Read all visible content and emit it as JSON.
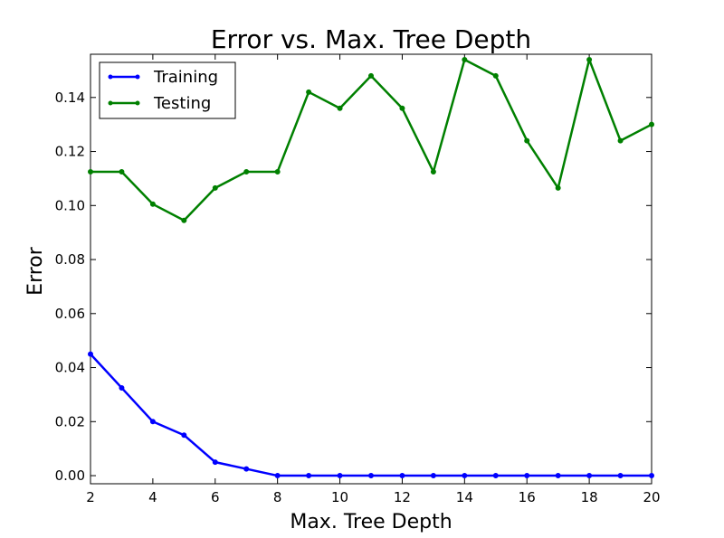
{
  "chart_data": {
    "type": "line",
    "title": "Error vs. Max. Tree Depth",
    "xlabel": "Max. Tree Depth",
    "ylabel": "Error",
    "xlim": [
      2,
      20
    ],
    "ylim": [
      -0.003,
      0.156
    ],
    "x_ticks": [
      2,
      4,
      6,
      8,
      10,
      12,
      14,
      16,
      18,
      20
    ],
    "y_ticks": [
      0.0,
      0.02,
      0.04,
      0.06,
      0.08,
      0.1,
      0.12,
      0.14
    ],
    "y_tick_labels": [
      "0.00",
      "0.02",
      "0.04",
      "0.06",
      "0.08",
      "0.10",
      "0.12",
      "0.14"
    ],
    "grid": false,
    "legend_position": "top-left",
    "x": [
      2,
      3,
      4,
      5,
      6,
      7,
      8,
      9,
      10,
      11,
      12,
      13,
      14,
      15,
      16,
      17,
      18,
      19,
      20
    ],
    "series": [
      {
        "name": "Training",
        "color": "#0000ff",
        "values": [
          0.045,
          0.0325,
          0.02,
          0.015,
          0.005,
          0.0025,
          0.0,
          0.0,
          0.0,
          0.0,
          0.0,
          0.0,
          0.0,
          0.0,
          0.0,
          0.0,
          0.0,
          0.0,
          0.0
        ]
      },
      {
        "name": "Testing",
        "color": "#008000",
        "values": [
          0.1125,
          0.1125,
          0.1005,
          0.0945,
          0.1065,
          0.1125,
          0.1125,
          0.142,
          0.136,
          0.148,
          0.136,
          0.1125,
          0.154,
          0.148,
          0.124,
          0.1065,
          0.154,
          0.124,
          0.13
        ]
      }
    ]
  }
}
